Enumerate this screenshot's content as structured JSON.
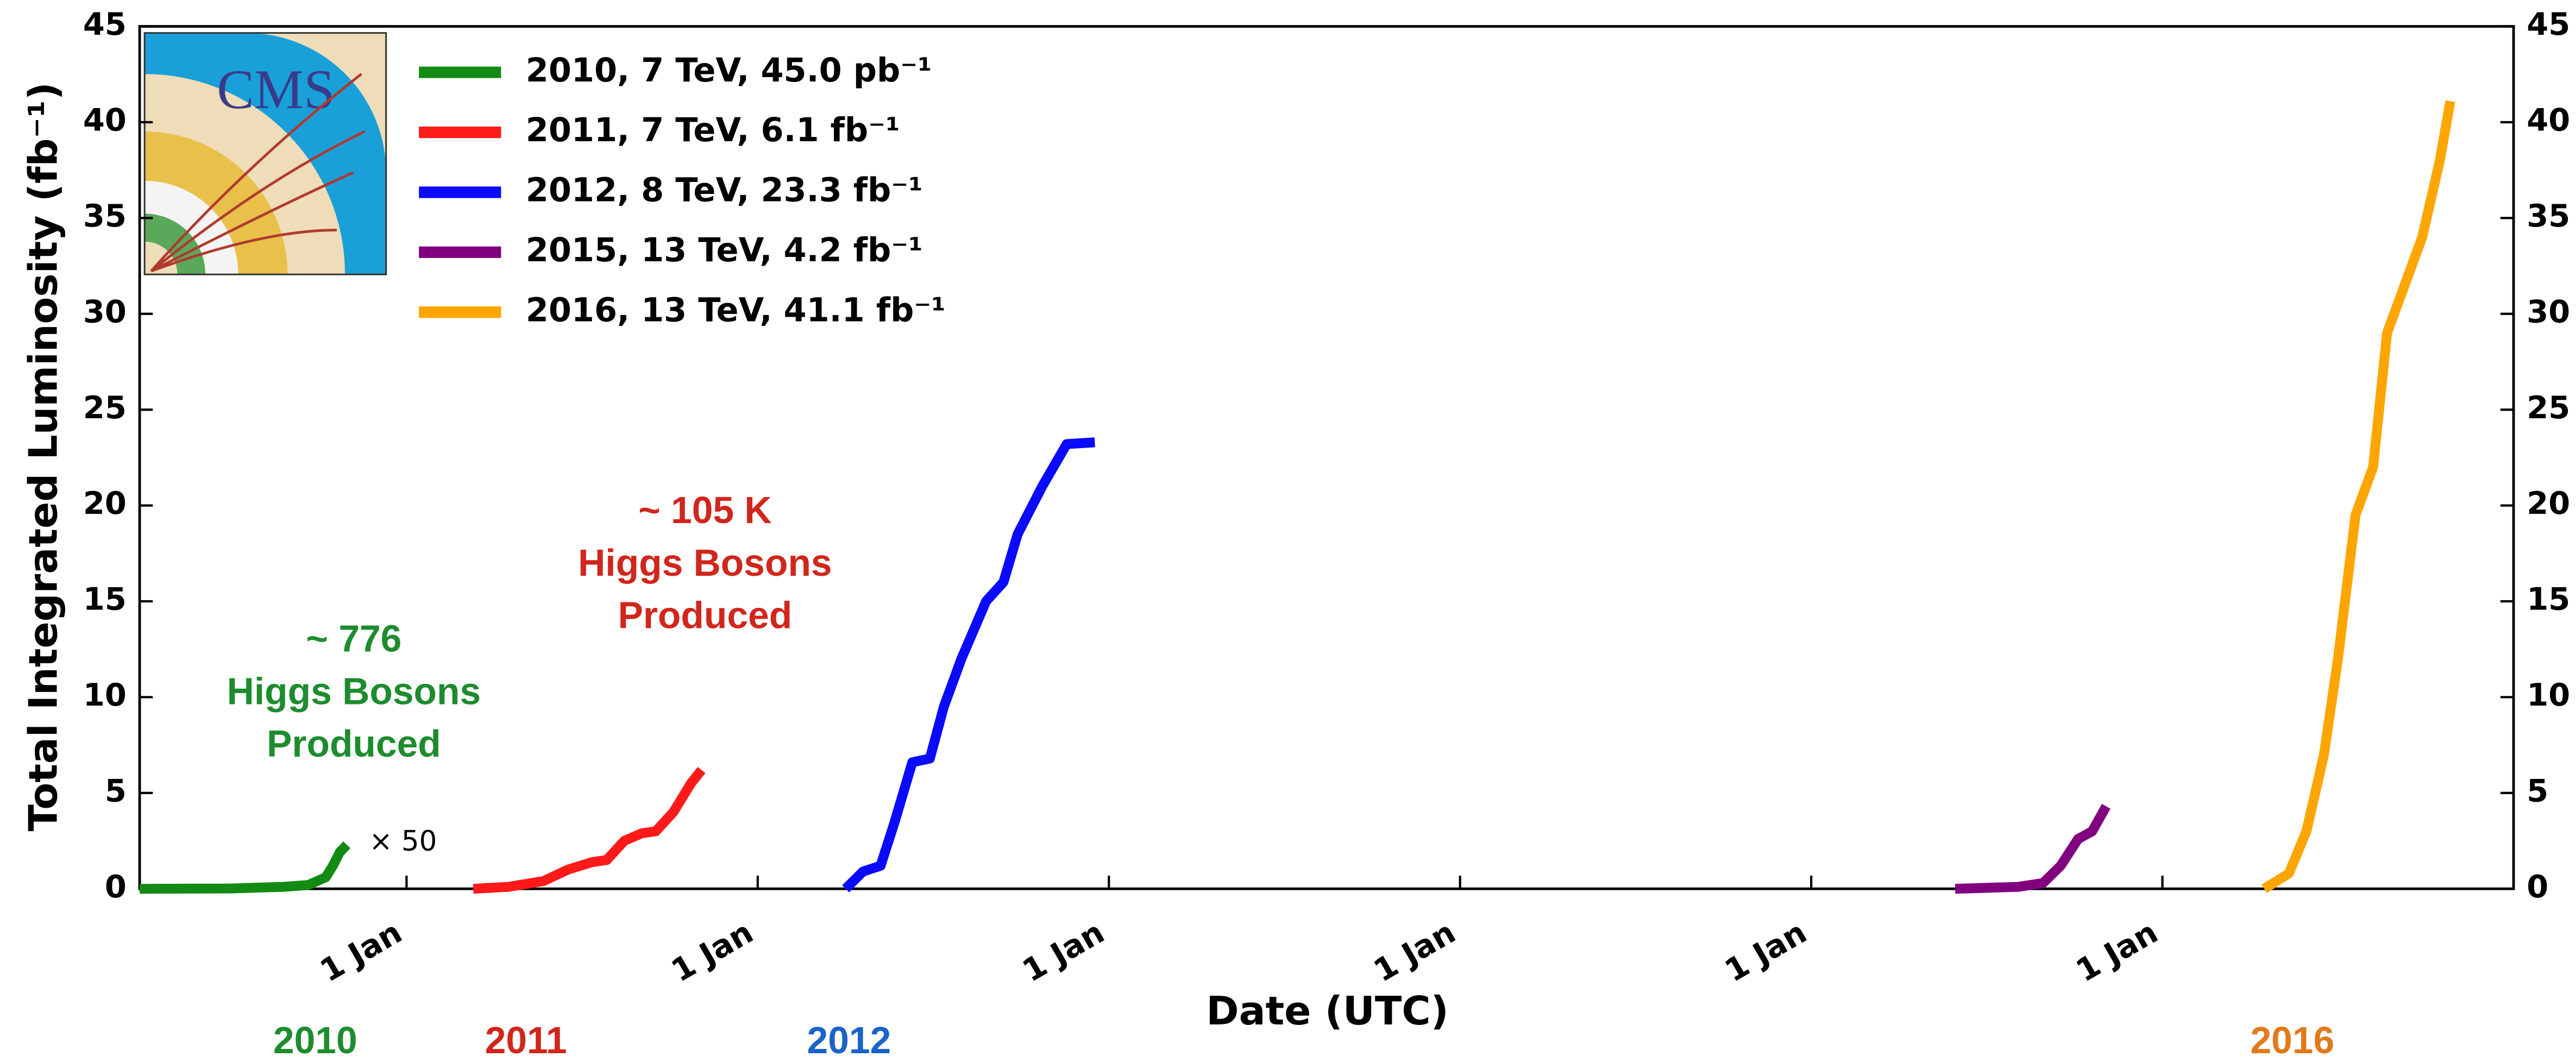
{
  "chart_data": {
    "type": "line",
    "x_label": "Date (UTC)",
    "y_label": "Total Integrated Luminosity (fb⁻¹)",
    "xlim": [
      2010.24,
      2017.0
    ],
    "xticks": [
      {
        "value": 2011,
        "label": "1 Jan"
      },
      {
        "value": 2012,
        "label": "1 Jan"
      },
      {
        "value": 2013,
        "label": "1 Jan"
      },
      {
        "value": 2014,
        "label": "1 Jan"
      },
      {
        "value": 2015,
        "label": "1 Jan"
      },
      {
        "value": 2016,
        "label": "1 Jan"
      }
    ],
    "ylim": [
      0,
      45
    ],
    "yticks": [
      0,
      5,
      10,
      15,
      20,
      25,
      30,
      35,
      40,
      45
    ],
    "y2lim": [
      0,
      45
    ],
    "y2ticks": [
      0,
      5,
      10,
      15,
      20,
      25,
      30,
      35,
      40,
      45
    ],
    "grid": false,
    "legend": "upper left",
    "series": [
      {
        "name": "2010, 7 TeV, 45.0 pb⁻¹",
        "color": "#138a13",
        "x": [
          2010.24,
          2010.5,
          2010.65,
          2010.72,
          2010.77,
          2010.79,
          2010.81,
          2010.83
        ],
        "values": [
          0,
          0.02,
          0.1,
          0.2,
          0.6,
          1.2,
          1.9,
          2.3
        ]
      },
      {
        "name": "2011, 7 TeV, 6.1 fb⁻¹",
        "color": "#ff1a1a",
        "x": [
          2011.19,
          2011.29,
          2011.39,
          2011.46,
          2011.53,
          2011.57,
          2011.62,
          2011.67,
          2011.71,
          2011.76,
          2011.81,
          2011.84
        ],
        "values": [
          0,
          0.1,
          0.4,
          1.0,
          1.4,
          1.5,
          2.5,
          2.9,
          3.0,
          4.0,
          5.5,
          6.2
        ]
      },
      {
        "name": "2012, 8 TeV, 23.3 fb⁻¹",
        "color": "#0a0aff",
        "x": [
          2012.25,
          2012.3,
          2012.35,
          2012.39,
          2012.44,
          2012.49,
          2012.53,
          2012.58,
          2012.65,
          2012.7,
          2012.74,
          2012.81,
          2012.88,
          2012.96
        ],
        "values": [
          0,
          0.9,
          1.2,
          3.5,
          6.6,
          6.8,
          9.5,
          12,
          15,
          16,
          18.5,
          21,
          23.2,
          23.3
        ]
      },
      {
        "name": "2015, 13 TeV, 4.2 fb⁻¹",
        "color": "#800080",
        "x": [
          2015.41,
          2015.59,
          2015.66,
          2015.71,
          2015.76,
          2015.8,
          2015.84
        ],
        "values": [
          0,
          0.1,
          0.3,
          1.2,
          2.6,
          3.0,
          4.3
        ]
      },
      {
        "name": "2016, 13 TeV, 41.1 fb⁻¹",
        "color": "#ffa500",
        "x": [
          2016.29,
          2016.36,
          2016.41,
          2016.46,
          2016.5,
          2016.55,
          2016.6,
          2016.64,
          2016.69,
          2016.74,
          2016.79,
          2016.82
        ],
        "values": [
          0,
          0.8,
          3,
          7,
          12,
          19.5,
          22,
          29,
          31.5,
          34,
          38,
          41.1
        ]
      }
    ],
    "annotations": [
      {
        "lines": [
          "~ 776",
          "Higgs Bosons",
          "Produced"
        ],
        "color": "#1e8c2e",
        "x": 2010.85,
        "y": 12.9
      },
      {
        "lines": [
          "~ 105 K",
          "Higgs Bosons",
          "Produced"
        ],
        "color": "#d0261c",
        "x": 2011.85,
        "y": 19.6
      }
    ],
    "scale_note": {
      "text": "× 50",
      "x": 2010.99,
      "y": 2.3
    },
    "year_labels": [
      {
        "text": "2010",
        "color": "#1e8c2e",
        "x": 2010.74
      },
      {
        "text": "2011",
        "color": "#d0261c",
        "x": 2011.34
      },
      {
        "text": "2012",
        "color": "#1a63c8",
        "x": 2012.26
      },
      {
        "text": "2016",
        "color": "#e07a1c",
        "x": 2016.37
      }
    ]
  }
}
